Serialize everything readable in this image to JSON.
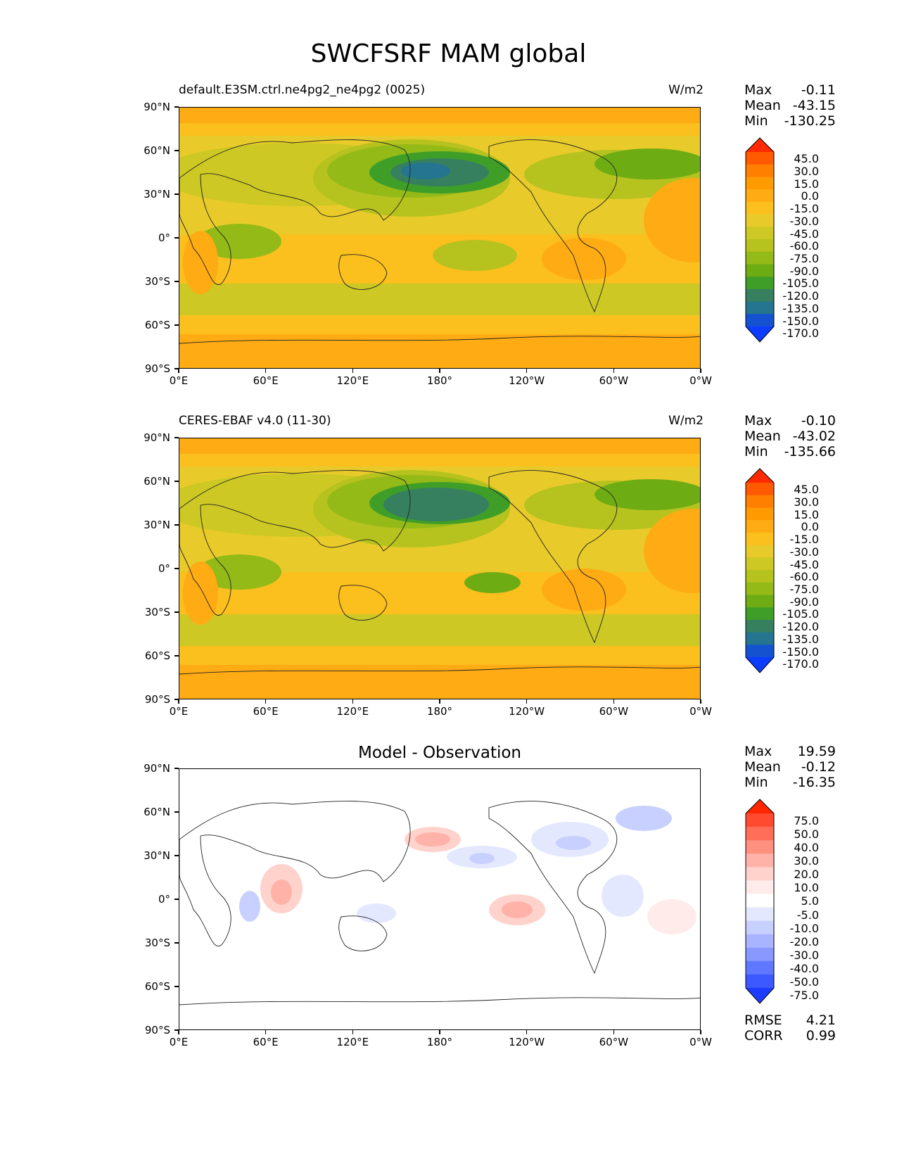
{
  "title": "SWCFSRF MAM global",
  "x_ticks": [
    "0°E",
    "60°E",
    "120°E",
    "180°",
    "120°W",
    "60°W",
    "0°W"
  ],
  "y_ticks": [
    "90°N",
    "60°N",
    "30°N",
    "0°",
    "30°S",
    "60°S",
    "90°S"
  ],
  "panels": [
    {
      "title_left": "default.E3SM.ctrl.ne4pg2_ne4pg2 (0025)",
      "title_right": "W/m2",
      "stats": {
        "max_label": "Max",
        "max": "-0.11",
        "mean_label": "Mean",
        "mean": "-43.15",
        "min_label": "Min",
        "min": "-130.25"
      },
      "colorbar": [
        "45.0",
        "30.0",
        "15.0",
        "0.0",
        "-15.0",
        "-30.0",
        "-45.0",
        "-60.0",
        "-75.0",
        "-90.0",
        "-105.0",
        "-120.0",
        "-135.0",
        "-150.0",
        "-170.0"
      ]
    },
    {
      "title_left": "CERES-EBAF v4.0 (11-30)",
      "title_right": "W/m2",
      "stats": {
        "max_label": "Max",
        "max": "-0.10",
        "mean_label": "Mean",
        "mean": "-43.02",
        "min_label": "Min",
        "min": "-135.66"
      },
      "colorbar": [
        "45.0",
        "30.0",
        "15.0",
        "0.0",
        "-15.0",
        "-30.0",
        "-45.0",
        "-60.0",
        "-75.0",
        "-90.0",
        "-105.0",
        "-120.0",
        "-135.0",
        "-150.0",
        "-170.0"
      ]
    },
    {
      "title_center": "Model - Observation",
      "stats": {
        "max_label": "Max",
        "max": "19.59",
        "mean_label": "Mean",
        "mean": "-0.12",
        "min_label": "Min",
        "min": "-16.35"
      },
      "colorbar": [
        "75.0",
        "50.0",
        "40.0",
        "30.0",
        "20.0",
        "10.0",
        "5.0",
        "-5.0",
        "-10.0",
        "-20.0",
        "-30.0",
        "-40.0",
        "-50.0",
        "-75.0"
      ],
      "metrics": {
        "rmse_label": "RMSE",
        "rmse": "4.21",
        "corr_label": "CORR",
        "corr": "0.99"
      }
    }
  ],
  "colors": {
    "swcf_scale": [
      "#ff2a00",
      "#ff5a00",
      "#ff7f00",
      "#ff9a00",
      "#ffab14",
      "#fbbf1e",
      "#e8cb2a",
      "#cdc824",
      "#b6c21e",
      "#94ba18",
      "#6eac14",
      "#3f9e28",
      "#368060",
      "#257590",
      "#1452d0",
      "#0b3cff"
    ],
    "diff_scale": [
      "#ff2600",
      "#ff4a30",
      "#ff6e58",
      "#ff9080",
      "#ffb2a8",
      "#ffd2cc",
      "#ffecea",
      "#ffffff",
      "#e4e8ff",
      "#c8d0ff",
      "#a8b4ff",
      "#8898ff",
      "#6078ff",
      "#3c58ff",
      "#1e3cff"
    ]
  }
}
